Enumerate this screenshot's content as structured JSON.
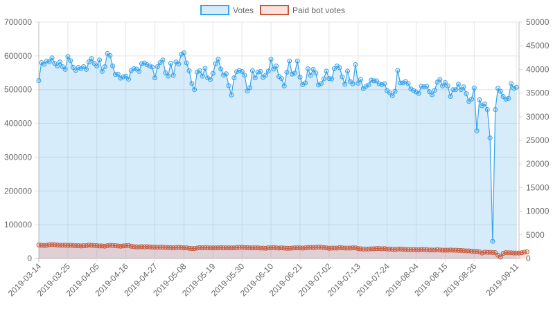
{
  "chart_data": {
    "type": "line",
    "title": "",
    "xlabel": "",
    "ylabel": "",
    "legend_position": "top",
    "grid": true,
    "x_range": [
      "2019-03-14",
      "2019-09-12"
    ],
    "x_tick_labels": [
      "2019-03-14",
      "2019-03-25",
      "2019-04-05",
      "2019-04-16",
      "2019-04-27",
      "2019-05-08",
      "2019-05-19",
      "2019-05-30",
      "2019-06-10",
      "2019-06-21",
      "2019-07-02",
      "2019-07-13",
      "2019-07-24",
      "2019-08-04",
      "2019-08-15",
      "2019-08-26",
      "2019-09-11"
    ],
    "y_left": {
      "min": 0,
      "max": 700000,
      "ticks": [
        "0",
        "100000",
        "200000",
        "300000",
        "400000",
        "500000",
        "600000",
        "700000"
      ]
    },
    "y_right": {
      "min": 0,
      "max": 50000,
      "ticks": [
        "0",
        "5000",
        "10000",
        "15000",
        "20000",
        "25000",
        "30000",
        "35000",
        "40000",
        "45000",
        "50000"
      ]
    },
    "series": [
      {
        "name": "Votes",
        "axis": "left",
        "color": "#36a2eb",
        "fill": "rgba(54,162,235,0.2)",
        "values": [
          527000,
          580000,
          575000,
          585000,
          583000,
          594000,
          578000,
          570000,
          582000,
          568000,
          560000,
          598000,
          586000,
          566000,
          557000,
          566000,
          562000,
          568000,
          560000,
          582000,
          592000,
          578000,
          570000,
          588000,
          554000,
          568000,
          607000,
          601000,
          570000,
          545000,
          546000,
          534000,
          538000,
          540000,
          531000,
          556000,
          562000,
          561000,
          554000,
          577000,
          579000,
          574000,
          570000,
          567000,
          535000,
          568000,
          580000,
          588000,
          550000,
          540000,
          578000,
          542000,
          582000,
          576000,
          605000,
          609000,
          579000,
          556000,
          518000,
          500000,
          552000,
          556000,
          540000,
          563000,
          535000,
          530000,
          548000,
          577000,
          590000,
          561000,
          543000,
          547000,
          512000,
          484000,
          535000,
          553000,
          557000,
          554000,
          543000,
          496000,
          506000,
          556000,
          535000,
          552000,
          554000,
          536000,
          543000,
          555000,
          590000,
          561000,
          570000,
          539000,
          533000,
          511000,
          552000,
          585000,
          546000,
          549000,
          585000,
          537000,
          515000,
          520000,
          562000,
          542000,
          560000,
          549000,
          514000,
          518000,
          532000,
          555000,
          533000,
          532000,
          562000,
          570000,
          565000,
          538000,
          516000,
          555000,
          524000,
          517000,
          574000,
          519000,
          530000,
          503000,
          510000,
          514000,
          528000,
          526000,
          526000,
          517000,
          515000,
          518000,
          497000,
          491000,
          482000,
          495000,
          557000,
          520000,
          520000,
          524000,
          518000,
          502000,
          498000,
          493000,
          489000,
          510000,
          508000,
          510000,
          494000,
          485000,
          498000,
          522000,
          530000,
          511000,
          521000,
          511000,
          480000,
          500000,
          500000,
          516000,
          500000,
          508000,
          488000,
          465000,
          472000,
          505000,
          378000,
          470000,
          452000,
          458000,
          441000,
          357000,
          51000,
          441000,
          504000,
          495000,
          480000,
          472000,
          474000,
          518000,
          504000,
          507000
        ]
      },
      {
        "name": "Paid bot votes",
        "axis": "right",
        "color": "#c0583a",
        "fill": "rgba(255,99,71,0.2)",
        "values": [
          2850,
          2800,
          2750,
          2800,
          2900,
          2950,
          2900,
          2850,
          2800,
          2800,
          2800,
          2750,
          2800,
          2750,
          2700,
          2700,
          2650,
          2700,
          2700,
          2850,
          2800,
          2750,
          2700,
          2650,
          2650,
          2600,
          2700,
          2800,
          2750,
          2700,
          2650,
          2600,
          2650,
          2700,
          2750,
          2600,
          2500,
          2450,
          2450,
          2500,
          2450,
          2500,
          2450,
          2400,
          2400,
          2350,
          2400,
          2400,
          2350,
          2300,
          2300,
          2250,
          2300,
          2350,
          2300,
          2250,
          2250,
          2150,
          2100,
          2100,
          2200,
          2300,
          2250,
          2300,
          2250,
          2250,
          2250,
          2250,
          2250,
          2300,
          2250,
          2250,
          2250,
          2250,
          2250,
          2300,
          2350,
          2350,
          2300,
          2300,
          2250,
          2250,
          2250,
          2250,
          2200,
          2200,
          2150,
          2250,
          2250,
          2300,
          2250,
          2200,
          2250,
          2200,
          2150,
          2150,
          2200,
          2250,
          2250,
          2250,
          2200,
          2250,
          2300,
          2350,
          2300,
          2350,
          2400,
          2400,
          2300,
          2250,
          2150,
          2200,
          2200,
          2200,
          2300,
          2250,
          2200,
          2200,
          2200,
          2250,
          2250,
          2100,
          2050,
          2000,
          2000,
          2000,
          2050,
          2050,
          2100,
          2100,
          2050,
          2100,
          2000,
          2000,
          1950,
          1900,
          2000,
          2000,
          1950,
          1900,
          1900,
          1850,
          1900,
          1850,
          1850,
          1900,
          1900,
          1850,
          1800,
          1800,
          1800,
          1850,
          1800,
          1750,
          1750,
          1750,
          1800,
          1750,
          1750,
          1700,
          1700,
          1650,
          1600,
          1600,
          1550,
          1500,
          1500,
          1400,
          1150,
          1350,
          1300,
          1300,
          1250,
          1250,
          700,
          300,
          1100,
          1250,
          1200,
          1200,
          1150,
          1150,
          1150,
          1200,
          1350,
          1400
        ]
      }
    ]
  }
}
